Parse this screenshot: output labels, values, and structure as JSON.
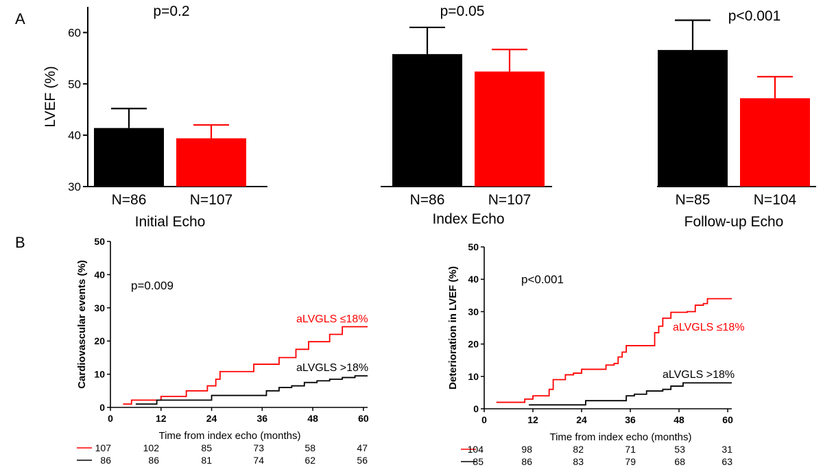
{
  "colors": {
    "group_normal": "#000000",
    "group_impaired": "#ff0000",
    "axis": "#000000"
  },
  "chart_data": [
    {
      "panel_label": "A",
      "type": "bar",
      "ylabel": "LVEF (%)",
      "ylim": [
        30,
        65
      ],
      "yticks": [
        30,
        40,
        50,
        60
      ],
      "groups": [
        {
          "name": "Initial Echo",
          "p_value": "p=0.2",
          "bars": [
            {
              "series": "aLVGLS >18%",
              "value": 41.4,
              "error": 3.8,
              "n_label": "N=86"
            },
            {
              "series": "aLVGLS ≤18%",
              "value": 39.4,
              "error": 2.6,
              "n_label": "N=107"
            }
          ]
        },
        {
          "name": "Index Echo",
          "p_value": "p=0.05",
          "bars": [
            {
              "series": "aLVGLS >18%",
              "value": 55.8,
              "error": 5.2,
              "n_label": "N=86"
            },
            {
              "series": "aLVGLS ≤18%",
              "value": 52.4,
              "error": 4.3,
              "n_label": "N=107"
            }
          ]
        },
        {
          "name": "Follow-up Echo",
          "p_value": "p<0.001",
          "bars": [
            {
              "series": "aLVGLS >18%",
              "value": 56.6,
              "error": 5.8,
              "n_label": "N=85"
            },
            {
              "series": "aLVGLS ≤18%",
              "value": 47.2,
              "error": 4.2,
              "n_label": "N=104"
            }
          ]
        }
      ]
    },
    {
      "panel_label": "B",
      "type": "line",
      "ylabel": "Cardiovascular events (%)",
      "xlabel": "Time from index echo (months)",
      "p_value": "p=0.009",
      "xlim": [
        0,
        61
      ],
      "ylim": [
        0,
        50
      ],
      "xticks": [
        0,
        12,
        24,
        36,
        48,
        60
      ],
      "yticks": [
        0,
        10,
        20,
        30,
        40,
        50
      ],
      "series": [
        {
          "name": "aLVGLS ≤18%",
          "color": "#ff0000",
          "x": [
            3,
            5,
            7,
            12,
            18,
            23,
            25,
            26,
            34,
            40,
            44,
            47,
            52,
            55,
            61
          ],
          "y": [
            1,
            2.2,
            2.2,
            3.3,
            5,
            6.5,
            8.5,
            10.8,
            13,
            15,
            17.5,
            19.8,
            22,
            24.3,
            24.3
          ]
        },
        {
          "name": "aLVGLS >18%",
          "color": "#000000",
          "x": [
            6,
            11,
            24,
            37,
            40,
            43,
            46,
            49,
            52,
            55,
            58,
            61
          ],
          "y": [
            1,
            2.2,
            3.6,
            5,
            6,
            6.5,
            7.5,
            8,
            8.5,
            9,
            9.5,
            9.5
          ]
        }
      ],
      "risk_table": {
        "labels": [
          "107",
          "86"
        ],
        "rows": [
          [
            "102",
            "85",
            "73",
            "58",
            "47"
          ],
          [
            "86",
            "81",
            "74",
            "62",
            "56"
          ]
        ]
      }
    },
    {
      "panel_label": "",
      "type": "line",
      "ylabel": "Deterioration in LVEF (%)",
      "xlabel": "Time from index echo (months)",
      "p_value": "p<0.001",
      "xlim": [
        0,
        61
      ],
      "ylim": [
        0,
        50
      ],
      "xticks": [
        0,
        12,
        24,
        36,
        48,
        60
      ],
      "yticks": [
        0,
        10,
        20,
        30,
        40,
        50
      ],
      "series": [
        {
          "name": "aLVGLS ≤18%",
          "color": "#ff0000",
          "x": [
            3,
            10,
            12,
            16,
            17,
            20,
            22,
            24,
            28,
            30,
            32,
            33,
            34,
            35,
            42,
            43,
            44,
            46,
            50,
            52,
            54,
            55,
            61
          ],
          "y": [
            2,
            3,
            4,
            6,
            9,
            10.5,
            11,
            12.2,
            12.2,
            13.5,
            14,
            16,
            17.5,
            19.5,
            23.5,
            25.5,
            28,
            29.8,
            30,
            32,
            32.5,
            34,
            34
          ]
        },
        {
          "name": "aLVGLS >18%",
          "color": "#000000",
          "x": [
            11,
            25,
            35,
            37,
            40,
            44,
            46,
            49,
            61
          ],
          "y": [
            1.2,
            2.5,
            4,
            4.5,
            5.5,
            6,
            7,
            8,
            8
          ]
        }
      ],
      "risk_table": {
        "labels": [
          "104",
          "85"
        ],
        "rows": [
          [
            "98",
            "82",
            "71",
            "53",
            "31"
          ],
          [
            "86",
            "83",
            "79",
            "68",
            "63"
          ]
        ]
      }
    }
  ]
}
